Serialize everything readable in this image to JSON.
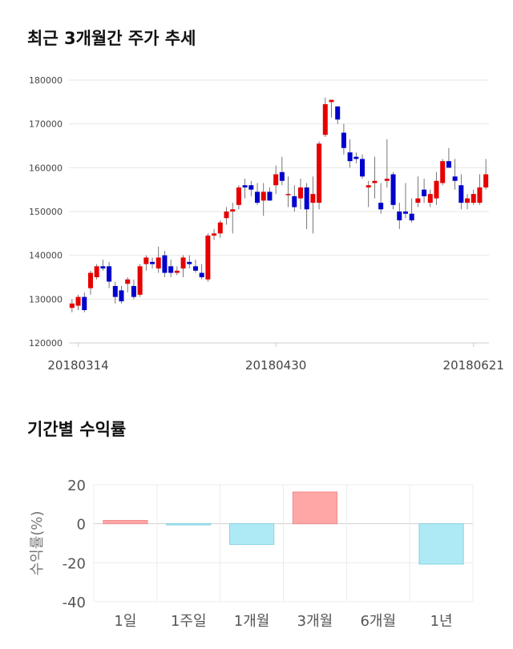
{
  "candle_section": {
    "title": "최근 3개월간 주가 추세"
  },
  "returns_section": {
    "title": "기간별 수익률"
  },
  "chart_data": [
    {
      "type": "candlestick",
      "title": "최근 3개월간 주가 추세",
      "ylim": [
        120000,
        180000
      ],
      "yticks": [
        120000,
        130000,
        140000,
        150000,
        160000,
        170000,
        180000
      ],
      "x_tick_labels": [
        "20180314",
        "20180430",
        "20180621"
      ],
      "x_tick_index": [
        1,
        33,
        65
      ],
      "grid": true,
      "colors": {
        "up": "#e60000",
        "down": "#0000cc"
      },
      "candles": [
        [
          128000,
          130000,
          127000,
          129000
        ],
        [
          128500,
          131000,
          127500,
          130500
        ],
        [
          130500,
          131500,
          127000,
          127500
        ],
        [
          132500,
          136500,
          131000,
          136000
        ],
        [
          135000,
          138000,
          134500,
          137500
        ],
        [
          137500,
          139000,
          136500,
          137000
        ],
        [
          137500,
          138500,
          132500,
          134000
        ],
        [
          133000,
          134000,
          129000,
          130500
        ],
        [
          132000,
          133000,
          129000,
          129500
        ],
        [
          133500,
          135000,
          131500,
          134500
        ],
        [
          133000,
          134500,
          130000,
          130500
        ],
        [
          131000,
          138000,
          130500,
          137500
        ],
        [
          138000,
          140000,
          136500,
          139500
        ],
        [
          138500,
          139500,
          137000,
          138000
        ],
        [
          137000,
          142000,
          136000,
          139500
        ],
        [
          140000,
          141000,
          135000,
          136000
        ],
        [
          137500,
          139000,
          135000,
          136000
        ],
        [
          136000,
          137500,
          135500,
          136500
        ],
        [
          137000,
          140000,
          135000,
          139500
        ],
        [
          138500,
          140000,
          137000,
          138000
        ],
        [
          137500,
          139000,
          136000,
          136500
        ],
        [
          136000,
          138000,
          134500,
          135000
        ],
        [
          134500,
          145000,
          134000,
          144500
        ],
        [
          144500,
          146000,
          143500,
          145000
        ],
        [
          145000,
          148000,
          144000,
          147500
        ],
        [
          148500,
          151000,
          147000,
          150000
        ],
        [
          150000,
          152000,
          145000,
          150500
        ],
        [
          151500,
          156000,
          150500,
          155500
        ],
        [
          156000,
          157500,
          153000,
          155500
        ],
        [
          156000,
          157000,
          153500,
          155000
        ],
        [
          154500,
          156500,
          151500,
          152000
        ],
        [
          152500,
          156500,
          149000,
          154500
        ],
        [
          154500,
          155500,
          152500,
          152500
        ],
        [
          156000,
          160500,
          154000,
          158500
        ],
        [
          159000,
          162500,
          156000,
          157000
        ],
        [
          154000,
          158000,
          151000,
          154000
        ],
        [
          153500,
          156000,
          150000,
          151000
        ],
        [
          153000,
          157500,
          150500,
          155500
        ],
        [
          155500,
          156500,
          146000,
          150500
        ],
        [
          152000,
          158000,
          145000,
          154000
        ],
        [
          152000,
          166000,
          150500,
          165500
        ],
        [
          167500,
          176000,
          167000,
          174500
        ],
        [
          175000,
          175500,
          171500,
          175500
        ],
        [
          174000,
          174000,
          170000,
          171000
        ],
        [
          168000,
          170000,
          163000,
          164500
        ],
        [
          163500,
          166500,
          160000,
          161500
        ],
        [
          162500,
          163500,
          161000,
          162000
        ],
        [
          162000,
          163000,
          157500,
          158000
        ],
        [
          155500,
          157000,
          151000,
          156000
        ],
        [
          156500,
          162500,
          153000,
          157000
        ],
        [
          152000,
          156500,
          149500,
          150500
        ],
        [
          157000,
          166500,
          155500,
          157500
        ],
        [
          158500,
          159000,
          150500,
          151500
        ],
        [
          150000,
          152000,
          146000,
          148000
        ],
        [
          150000,
          156500,
          148500,
          149500
        ],
        [
          149500,
          153000,
          147500,
          148000
        ],
        [
          152000,
          158000,
          151000,
          153000
        ],
        [
          155000,
          157500,
          152000,
          153500
        ],
        [
          152000,
          155000,
          151000,
          154000
        ],
        [
          153000,
          159000,
          151500,
          157000
        ],
        [
          156500,
          162000,
          156000,
          161500
        ],
        [
          161500,
          164500,
          160500,
          160000
        ],
        [
          158000,
          162000,
          155000,
          157000
        ],
        [
          156000,
          158500,
          150500,
          152000
        ],
        [
          152000,
          154000,
          150500,
          153000
        ],
        [
          152000,
          155000,
          151500,
          154000
        ],
        [
          152000,
          158500,
          151500,
          155500
        ],
        [
          155500,
          162000,
          155000,
          158500
        ]
      ]
    },
    {
      "type": "bar",
      "title": "기간별 수익률",
      "ylabel": "수익률(%)",
      "ylim": [
        -40,
        20
      ],
      "yticks": [
        20,
        0,
        -20,
        -40
      ],
      "categories": [
        "1일",
        "1주일",
        "1개월",
        "3개월",
        "6개월",
        "1년"
      ],
      "values": [
        1.7,
        -0.6,
        -10.6,
        16.3,
        0,
        -20.7
      ],
      "colors": {
        "positive_fill": "#ffa6a6",
        "positive_stroke": "#f08c8c",
        "negative_fill": "#aeeaf5",
        "negative_stroke": "#86d3e3"
      },
      "grid": true
    }
  ]
}
